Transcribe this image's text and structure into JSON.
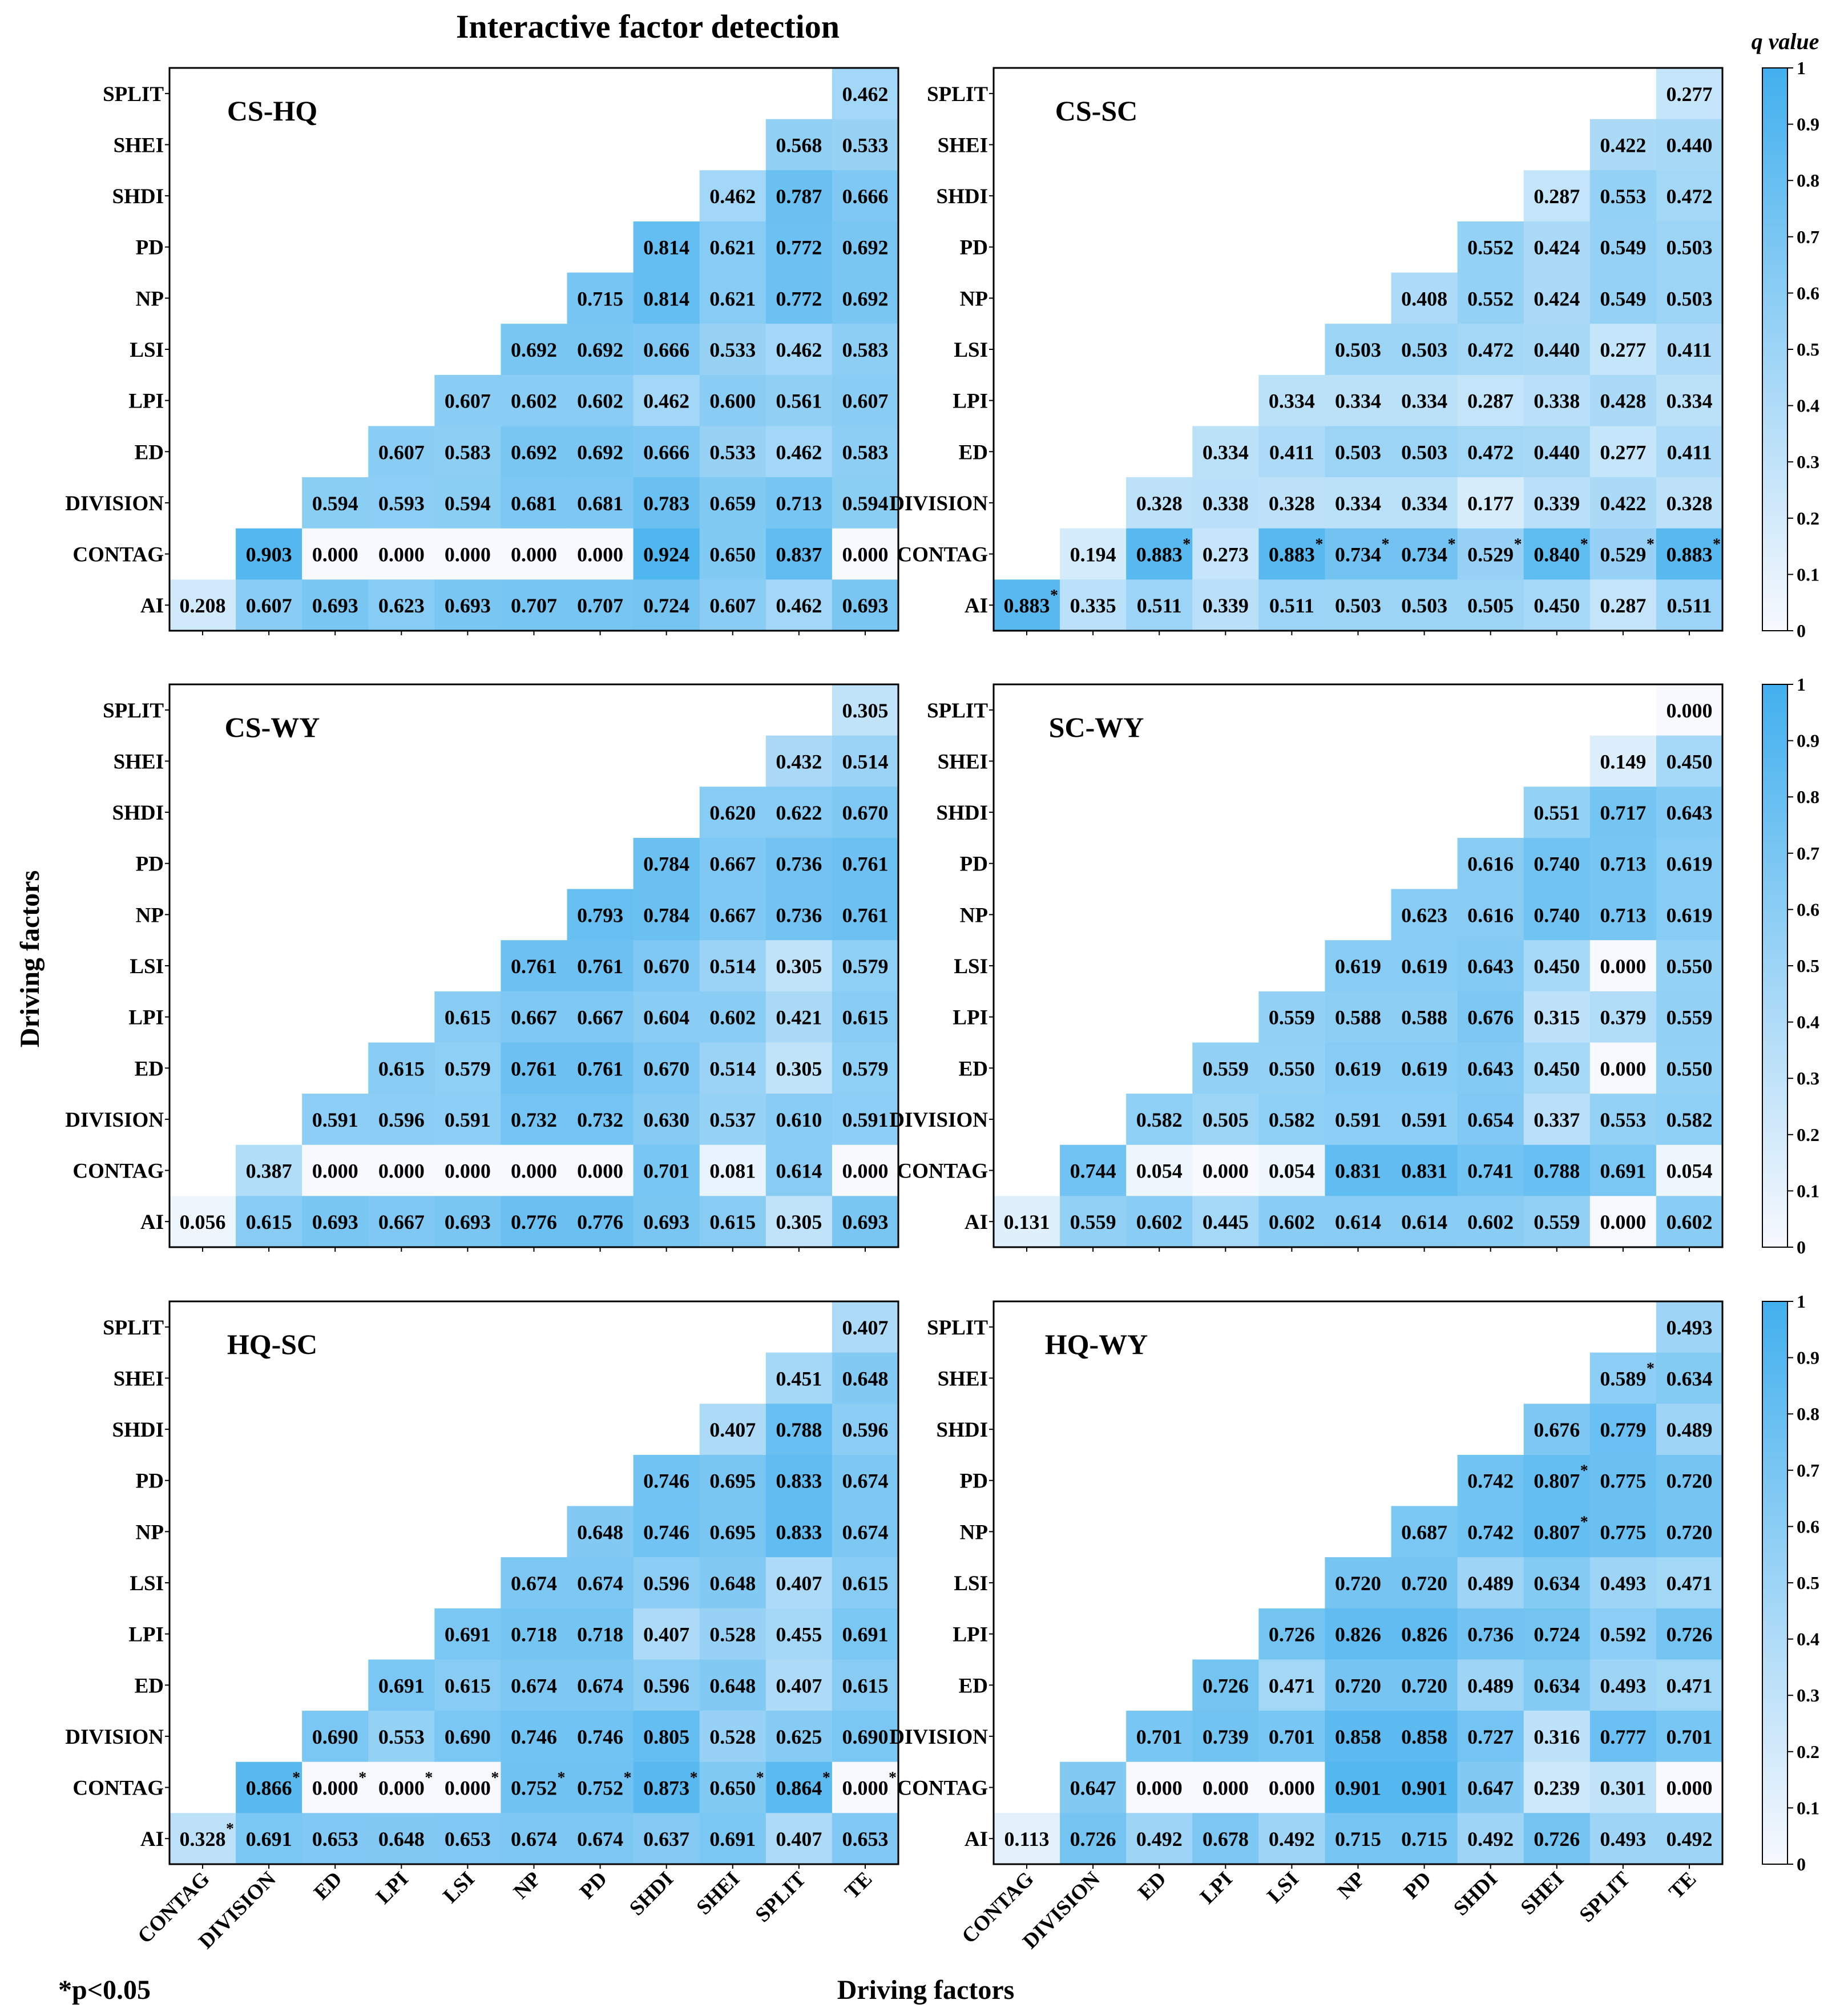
{
  "title": "Interactive factor detection",
  "xlabel": "Driving factors",
  "ylabel": "Driving factors",
  "colorbar_label": "q value",
  "colorbar_ticks": [
    "1",
    "0.9",
    "0.8",
    "0.7",
    "0.6",
    "0.5",
    "0.4",
    "0.3",
    "0.2",
    "0.1",
    "0"
  ],
  "note": "*p<0.05",
  "colors": {
    "low": "#f7f9fe",
    "high": "#42b0ee",
    "frame": "#000000"
  },
  "chart_data": {
    "type": "heatmap",
    "x_categories": [
      "CONTAG",
      "DIVISION",
      "ED",
      "LPI",
      "LSI",
      "NP",
      "PD",
      "SHDI",
      "SHEI",
      "SPLIT",
      "TE"
    ],
    "y_categories": [
      "SPLIT",
      "SHEI",
      "SHDI",
      "PD",
      "NP",
      "LSI",
      "LPI",
      "ED",
      "DIVISION",
      "CONTAG",
      "AI"
    ],
    "value_range": [
      0,
      1
    ],
    "panels": [
      {
        "name": "CS-HQ",
        "rows": [
          [
            null,
            null,
            null,
            null,
            null,
            null,
            null,
            null,
            null,
            null,
            "0.462"
          ],
          [
            null,
            null,
            null,
            null,
            null,
            null,
            null,
            null,
            null,
            "0.568",
            "0.533"
          ],
          [
            null,
            null,
            null,
            null,
            null,
            null,
            null,
            null,
            "0.462",
            "0.787",
            "0.666"
          ],
          [
            null,
            null,
            null,
            null,
            null,
            null,
            null,
            "0.814",
            "0.621",
            "0.772",
            "0.692"
          ],
          [
            null,
            null,
            null,
            null,
            null,
            null,
            "0.715",
            "0.814",
            "0.621",
            "0.772",
            "0.692"
          ],
          [
            null,
            null,
            null,
            null,
            null,
            "0.692",
            "0.692",
            "0.666",
            "0.533",
            "0.462",
            "0.583"
          ],
          [
            null,
            null,
            null,
            null,
            "0.607",
            "0.602",
            "0.602",
            "0.462",
            "0.600",
            "0.561",
            "0.607"
          ],
          [
            null,
            null,
            null,
            "0.607",
            "0.583",
            "0.692",
            "0.692",
            "0.666",
            "0.533",
            "0.462",
            "0.583"
          ],
          [
            null,
            null,
            "0.594",
            "0.593",
            "0.594",
            "0.681",
            "0.681",
            "0.783",
            "0.659",
            "0.713",
            "0.594"
          ],
          [
            null,
            "0.903",
            "0.000",
            "0.000",
            "0.000",
            "0.000",
            "0.000",
            "0.924",
            "0.650",
            "0.837",
            "0.000"
          ],
          [
            "0.208",
            "0.607",
            "0.693",
            "0.623",
            "0.693",
            "0.707",
            "0.707",
            "0.724",
            "0.607",
            "0.462",
            "0.693"
          ]
        ],
        "significant": []
      },
      {
        "name": "CS-SC",
        "rows": [
          [
            null,
            null,
            null,
            null,
            null,
            null,
            null,
            null,
            null,
            null,
            "0.277"
          ],
          [
            null,
            null,
            null,
            null,
            null,
            null,
            null,
            null,
            null,
            "0.422",
            "0.440"
          ],
          [
            null,
            null,
            null,
            null,
            null,
            null,
            null,
            null,
            "0.287",
            "0.553",
            "0.472"
          ],
          [
            null,
            null,
            null,
            null,
            null,
            null,
            null,
            "0.552",
            "0.424",
            "0.549",
            "0.503"
          ],
          [
            null,
            null,
            null,
            null,
            null,
            null,
            "0.408",
            "0.552",
            "0.424",
            "0.549",
            "0.503"
          ],
          [
            null,
            null,
            null,
            null,
            null,
            "0.503",
            "0.503",
            "0.472",
            "0.440",
            "0.277",
            "0.411"
          ],
          [
            null,
            null,
            null,
            null,
            "0.334",
            "0.334",
            "0.334",
            "0.287",
            "0.338",
            "0.428",
            "0.334"
          ],
          [
            null,
            null,
            null,
            "0.334",
            "0.411",
            "0.503",
            "0.503",
            "0.472",
            "0.440",
            "0.277",
            "0.411"
          ],
          [
            null,
            null,
            "0.328",
            "0.338",
            "0.328",
            "0.334",
            "0.334",
            "0.177",
            "0.339",
            "0.422",
            "0.328"
          ],
          [
            null,
            "0.194",
            "0.883",
            "0.273",
            "0.883",
            "0.734",
            "0.734",
            "0.529",
            "0.840",
            "0.529",
            "0.883"
          ],
          [
            "0.883",
            "0.335",
            "0.511",
            "0.339",
            "0.511",
            "0.503",
            "0.503",
            "0.505",
            "0.450",
            "0.287",
            "0.511"
          ]
        ],
        "significant": [
          [
            9,
            2
          ],
          [
            9,
            4
          ],
          [
            9,
            5
          ],
          [
            9,
            6
          ],
          [
            9,
            7
          ],
          [
            9,
            8
          ],
          [
            9,
            9
          ],
          [
            9,
            10
          ],
          [
            10,
            0
          ]
        ]
      },
      {
        "name": "CS-WY",
        "rows": [
          [
            null,
            null,
            null,
            null,
            null,
            null,
            null,
            null,
            null,
            null,
            "0.305"
          ],
          [
            null,
            null,
            null,
            null,
            null,
            null,
            null,
            null,
            null,
            "0.432",
            "0.514"
          ],
          [
            null,
            null,
            null,
            null,
            null,
            null,
            null,
            null,
            "0.620",
            "0.622",
            "0.670"
          ],
          [
            null,
            null,
            null,
            null,
            null,
            null,
            null,
            "0.784",
            "0.667",
            "0.736",
            "0.761"
          ],
          [
            null,
            null,
            null,
            null,
            null,
            null,
            "0.793",
            "0.784",
            "0.667",
            "0.736",
            "0.761"
          ],
          [
            null,
            null,
            null,
            null,
            null,
            "0.761",
            "0.761",
            "0.670",
            "0.514",
            "0.305",
            "0.579"
          ],
          [
            null,
            null,
            null,
            null,
            "0.615",
            "0.667",
            "0.667",
            "0.604",
            "0.602",
            "0.421",
            "0.615"
          ],
          [
            null,
            null,
            null,
            "0.615",
            "0.579",
            "0.761",
            "0.761",
            "0.670",
            "0.514",
            "0.305",
            "0.579"
          ],
          [
            null,
            null,
            "0.591",
            "0.596",
            "0.591",
            "0.732",
            "0.732",
            "0.630",
            "0.537",
            "0.610",
            "0.591"
          ],
          [
            null,
            "0.387",
            "0.000",
            "0.000",
            "0.000",
            "0.000",
            "0.000",
            "0.701",
            "0.081",
            "0.614",
            "0.000"
          ],
          [
            "0.056",
            "0.615",
            "0.693",
            "0.667",
            "0.693",
            "0.776",
            "0.776",
            "0.693",
            "0.615",
            "0.305",
            "0.693"
          ]
        ],
        "significant": []
      },
      {
        "name": "SC-WY",
        "rows": [
          [
            null,
            null,
            null,
            null,
            null,
            null,
            null,
            null,
            null,
            null,
            "0.000"
          ],
          [
            null,
            null,
            null,
            null,
            null,
            null,
            null,
            null,
            null,
            "0.149",
            "0.450"
          ],
          [
            null,
            null,
            null,
            null,
            null,
            null,
            null,
            null,
            "0.551",
            "0.717",
            "0.643"
          ],
          [
            null,
            null,
            null,
            null,
            null,
            null,
            null,
            "0.616",
            "0.740",
            "0.713",
            "0.619"
          ],
          [
            null,
            null,
            null,
            null,
            null,
            null,
            "0.623",
            "0.616",
            "0.740",
            "0.713",
            "0.619"
          ],
          [
            null,
            null,
            null,
            null,
            null,
            "0.619",
            "0.619",
            "0.643",
            "0.450",
            "0.000",
            "0.550"
          ],
          [
            null,
            null,
            null,
            null,
            "0.559",
            "0.588",
            "0.588",
            "0.676",
            "0.315",
            "0.379",
            "0.559"
          ],
          [
            null,
            null,
            null,
            "0.559",
            "0.550",
            "0.619",
            "0.619",
            "0.643",
            "0.450",
            "0.000",
            "0.550"
          ],
          [
            null,
            null,
            "0.582",
            "0.505",
            "0.582",
            "0.591",
            "0.591",
            "0.654",
            "0.337",
            "0.553",
            "0.582"
          ],
          [
            null,
            "0.744",
            "0.054",
            "0.000",
            "0.054",
            "0.831",
            "0.831",
            "0.741",
            "0.788",
            "0.691",
            "0.054"
          ],
          [
            "0.131",
            "0.559",
            "0.602",
            "0.445",
            "0.602",
            "0.614",
            "0.614",
            "0.602",
            "0.559",
            "0.000",
            "0.602"
          ]
        ],
        "significant": []
      },
      {
        "name": "HQ-SC",
        "rows": [
          [
            null,
            null,
            null,
            null,
            null,
            null,
            null,
            null,
            null,
            null,
            "0.407"
          ],
          [
            null,
            null,
            null,
            null,
            null,
            null,
            null,
            null,
            null,
            "0.451",
            "0.648"
          ],
          [
            null,
            null,
            null,
            null,
            null,
            null,
            null,
            null,
            "0.407",
            "0.788",
            "0.596"
          ],
          [
            null,
            null,
            null,
            null,
            null,
            null,
            null,
            "0.746",
            "0.695",
            "0.833",
            "0.674"
          ],
          [
            null,
            null,
            null,
            null,
            null,
            null,
            "0.648",
            "0.746",
            "0.695",
            "0.833",
            "0.674"
          ],
          [
            null,
            null,
            null,
            null,
            null,
            "0.674",
            "0.674",
            "0.596",
            "0.648",
            "0.407",
            "0.615"
          ],
          [
            null,
            null,
            null,
            null,
            "0.691",
            "0.718",
            "0.718",
            "0.407",
            "0.528",
            "0.455",
            "0.691"
          ],
          [
            null,
            null,
            null,
            "0.691",
            "0.615",
            "0.674",
            "0.674",
            "0.596",
            "0.648",
            "0.407",
            "0.615"
          ],
          [
            null,
            null,
            "0.690",
            "0.553",
            "0.690",
            "0.746",
            "0.746",
            "0.805",
            "0.528",
            "0.625",
            "0.690"
          ],
          [
            null,
            "0.866",
            "0.000",
            "0.000",
            "0.000",
            "0.752",
            "0.752",
            "0.873",
            "0.650",
            "0.864",
            "0.000"
          ],
          [
            "0.328",
            "0.691",
            "0.653",
            "0.648",
            "0.653",
            "0.674",
            "0.674",
            "0.637",
            "0.691",
            "0.407",
            "0.653"
          ]
        ],
        "significant": [
          [
            9,
            1
          ],
          [
            9,
            2
          ],
          [
            9,
            3
          ],
          [
            9,
            4
          ],
          [
            9,
            5
          ],
          [
            9,
            6
          ],
          [
            9,
            7
          ],
          [
            9,
            8
          ],
          [
            9,
            9
          ],
          [
            9,
            10
          ],
          [
            10,
            0
          ]
        ]
      },
      {
        "name": "HQ-WY",
        "rows": [
          [
            null,
            null,
            null,
            null,
            null,
            null,
            null,
            null,
            null,
            null,
            "0.493"
          ],
          [
            null,
            null,
            null,
            null,
            null,
            null,
            null,
            null,
            null,
            "0.589",
            "0.634"
          ],
          [
            null,
            null,
            null,
            null,
            null,
            null,
            null,
            null,
            "0.676",
            "0.779",
            "0.489"
          ],
          [
            null,
            null,
            null,
            null,
            null,
            null,
            null,
            "0.742",
            "0.807",
            "0.775",
            "0.720"
          ],
          [
            null,
            null,
            null,
            null,
            null,
            null,
            "0.687",
            "0.742",
            "0.807",
            "0.775",
            "0.720"
          ],
          [
            null,
            null,
            null,
            null,
            null,
            "0.720",
            "0.720",
            "0.489",
            "0.634",
            "0.493",
            "0.471"
          ],
          [
            null,
            null,
            null,
            null,
            "0.726",
            "0.826",
            "0.826",
            "0.736",
            "0.724",
            "0.592",
            "0.726"
          ],
          [
            null,
            null,
            null,
            "0.726",
            "0.471",
            "0.720",
            "0.720",
            "0.489",
            "0.634",
            "0.493",
            "0.471"
          ],
          [
            null,
            null,
            "0.701",
            "0.739",
            "0.701",
            "0.858",
            "0.858",
            "0.727",
            "0.316",
            "0.777",
            "0.701"
          ],
          [
            null,
            "0.647",
            "0.000",
            "0.000",
            "0.000",
            "0.901",
            "0.901",
            "0.647",
            "0.239",
            "0.301",
            "0.000"
          ],
          [
            "0.113",
            "0.726",
            "0.492",
            "0.678",
            "0.492",
            "0.715",
            "0.715",
            "0.492",
            "0.726",
            "0.493",
            "0.492"
          ]
        ],
        "significant": [
          [
            1,
            9
          ],
          [
            3,
            8
          ],
          [
            4,
            8
          ]
        ]
      }
    ]
  }
}
